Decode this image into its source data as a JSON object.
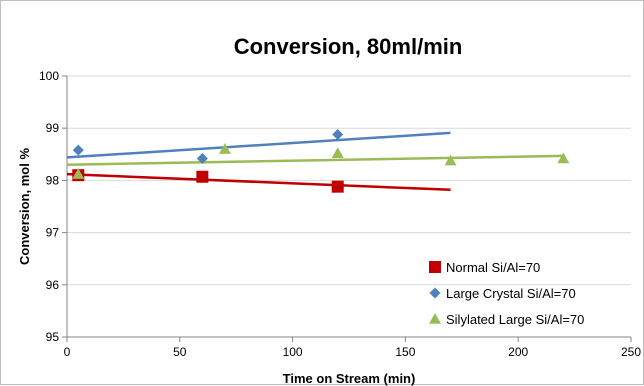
{
  "chart_data": {
    "type": "scatter",
    "title": "Conversion, 80ml/min",
    "xlabel": "Time on Stream (min)",
    "ylabel": "Conversion, mol %",
    "xlim": [
      0,
      250
    ],
    "ylim": [
      95,
      100
    ],
    "x_ticks": [
      0,
      50,
      100,
      150,
      200,
      250
    ],
    "y_ticks": [
      95,
      96,
      97,
      98,
      99,
      100
    ],
    "grid": "horizontal",
    "legend_position": "bottom-right",
    "series": [
      {
        "name": "Normal Si/Al=70",
        "marker": "square",
        "color": "#c00000",
        "points": [
          [
            5,
            98.1
          ],
          [
            60,
            98.07
          ],
          [
            120,
            97.88
          ]
        ],
        "trendline": [
          [
            0,
            98.12
          ],
          [
            170,
            97.82
          ]
        ]
      },
      {
        "name": "Large Crystal Si/Al=70",
        "marker": "diamond",
        "color": "#4f81bd",
        "points": [
          [
            5,
            98.58
          ],
          [
            60,
            98.42
          ],
          [
            120,
            98.88
          ]
        ],
        "trendline": [
          [
            0,
            98.44
          ],
          [
            170,
            98.91
          ]
        ]
      },
      {
        "name": "Silylated Large Si/Al=70",
        "marker": "triangle",
        "color": "#9bbb59",
        "points": [
          [
            5,
            98.12
          ],
          [
            70,
            98.6
          ],
          [
            120,
            98.52
          ],
          [
            170,
            98.38
          ],
          [
            220,
            98.42
          ]
        ],
        "trendline": [
          [
            0,
            98.3
          ],
          [
            220,
            98.47
          ]
        ]
      }
    ]
  }
}
